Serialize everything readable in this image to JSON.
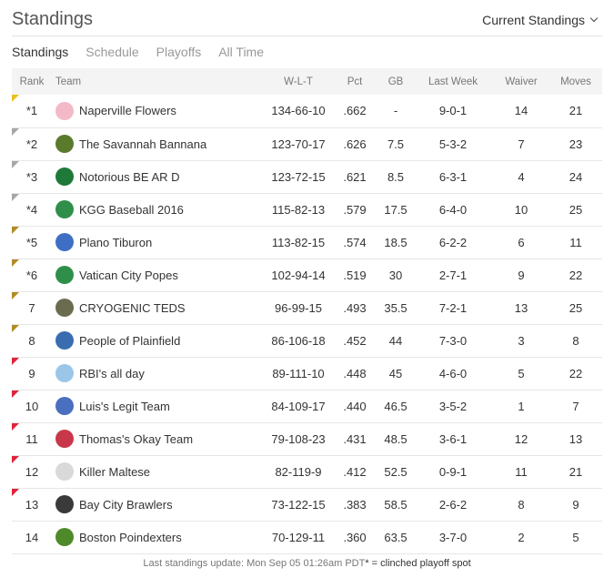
{
  "header": {
    "title": "Standings",
    "view_select": "Current Standings"
  },
  "tabs": [
    {
      "label": "Standings",
      "active": true
    },
    {
      "label": "Schedule",
      "active": false
    },
    {
      "label": "Playoffs",
      "active": false
    },
    {
      "label": "All Time",
      "active": false
    }
  ],
  "columns": [
    "Rank",
    "Team",
    "W-L-T",
    "Pct",
    "GB",
    "Last Week",
    "Waiver",
    "Moves"
  ],
  "rows": [
    {
      "rank": "*1",
      "team": "Naperville Flowers",
      "wlt": "134-66-10",
      "pct": ".662",
      "gb": "-",
      "last_week": "9-0-1",
      "waiver": "14",
      "moves": "21",
      "badge": "gold",
      "logo_color": "#f3b9c7",
      "logo_icon": "flowers-logo-icon"
    },
    {
      "rank": "*2",
      "team": "The Savannah Bannana",
      "wlt": "123-70-17",
      "pct": ".626",
      "gb": "7.5",
      "last_week": "5-3-2",
      "waiver": "7",
      "moves": "23",
      "badge": "silver",
      "logo_color": "#5a7a2c",
      "logo_icon": "banana-logo-icon"
    },
    {
      "rank": "*3",
      "team": "Notorious BE AR D",
      "wlt": "123-72-15",
      "pct": ".621",
      "gb": "8.5",
      "last_week": "6-3-1",
      "waiver": "4",
      "moves": "24",
      "badge": "silver",
      "logo_color": "#1f7a3a",
      "logo_icon": "mustache-logo-icon"
    },
    {
      "rank": "*4",
      "team": "KGG Baseball 2016",
      "wlt": "115-82-13",
      "pct": ".579",
      "gb": "17.5",
      "last_week": "6-4-0",
      "waiver": "10",
      "moves": "25",
      "badge": "silver",
      "logo_color": "#2f8f4a",
      "logo_icon": "cap-logo-icon"
    },
    {
      "rank": "*5",
      "team": "Plano Tiburon",
      "wlt": "113-82-15",
      "pct": ".574",
      "gb": "18.5",
      "last_week": "6-2-2",
      "waiver": "6",
      "moves": "11",
      "badge": "bronze",
      "logo_color": "#3f6fc4",
      "logo_icon": "helmet-logo-icon"
    },
    {
      "rank": "*6",
      "team": "Vatican City Popes",
      "wlt": "102-94-14",
      "pct": ".519",
      "gb": "30",
      "last_week": "2-7-1",
      "waiver": "9",
      "moves": "22",
      "badge": "bronze",
      "logo_color": "#2f8f4a",
      "logo_icon": "cap-logo-icon"
    },
    {
      "rank": "7",
      "team": "CRYOGENIC TEDS",
      "wlt": "96-99-15",
      "pct": ".493",
      "gb": "35.5",
      "last_week": "7-2-1",
      "waiver": "13",
      "moves": "25",
      "badge": "bronze",
      "logo_color": "#6b6b4f",
      "logo_icon": "jar-logo-icon"
    },
    {
      "rank": "8",
      "team": "People of Plainfield",
      "wlt": "86-106-18",
      "pct": ".452",
      "gb": "44",
      "last_week": "7-3-0",
      "waiver": "3",
      "moves": "8",
      "badge": "bronze",
      "logo_color": "#3a6cb0",
      "logo_icon": "cap-logo-icon"
    },
    {
      "rank": "9",
      "team": "RBI's all day",
      "wlt": "89-111-10",
      "pct": ".448",
      "gb": "45",
      "last_week": "4-6-0",
      "waiver": "5",
      "moves": "22",
      "badge": "red",
      "logo_color": "#9cc6e8",
      "logo_icon": "jersey-logo-icon"
    },
    {
      "rank": "10",
      "team": "Luis's Legit Team",
      "wlt": "84-109-17",
      "pct": ".440",
      "gb": "46.5",
      "last_week": "3-5-2",
      "waiver": "1",
      "moves": "7",
      "badge": "red",
      "logo_color": "#4a6fc0",
      "logo_icon": "jersey-logo-icon"
    },
    {
      "rank": "11",
      "team": "Thomas's Okay Team",
      "wlt": "79-108-23",
      "pct": ".431",
      "gb": "48.5",
      "last_week": "3-6-1",
      "waiver": "12",
      "moves": "13",
      "badge": "red",
      "logo_color": "#c8384a",
      "logo_icon": "jersey-logo-icon"
    },
    {
      "rank": "12",
      "team": "Killer Maltese",
      "wlt": "82-119-9",
      "pct": ".412",
      "gb": "52.5",
      "last_week": "0-9-1",
      "waiver": "11",
      "moves": "21",
      "badge": "red",
      "logo_color": "#d9d9d9",
      "logo_icon": "dog-logo-icon"
    },
    {
      "rank": "13",
      "team": "Bay City Brawlers",
      "wlt": "73-122-15",
      "pct": ".383",
      "gb": "58.5",
      "last_week": "2-6-2",
      "waiver": "8",
      "moves": "9",
      "badge": "red",
      "logo_color": "#3a3a3a",
      "logo_icon": "brawler-logo-icon"
    },
    {
      "rank": "14",
      "team": "Boston Poindexters",
      "wlt": "70-129-11",
      "pct": ".360",
      "gb": "63.5",
      "last_week": "3-7-0",
      "waiver": "2",
      "moves": "5",
      "badge": "none",
      "logo_color": "#4f8a2a",
      "logo_icon": "gator-logo-icon"
    }
  ],
  "footer": {
    "update": "Last standings update: Mon Sep 05 01:26am PDT",
    "mark": "*",
    "legend": " = clinched playoff spot"
  },
  "colors": {
    "gold": "#e9c11f",
    "silver": "#a7a7a7",
    "bronze": "#b38b28",
    "red": "#e0243b",
    "header_bg": "#f4f4f4"
  }
}
